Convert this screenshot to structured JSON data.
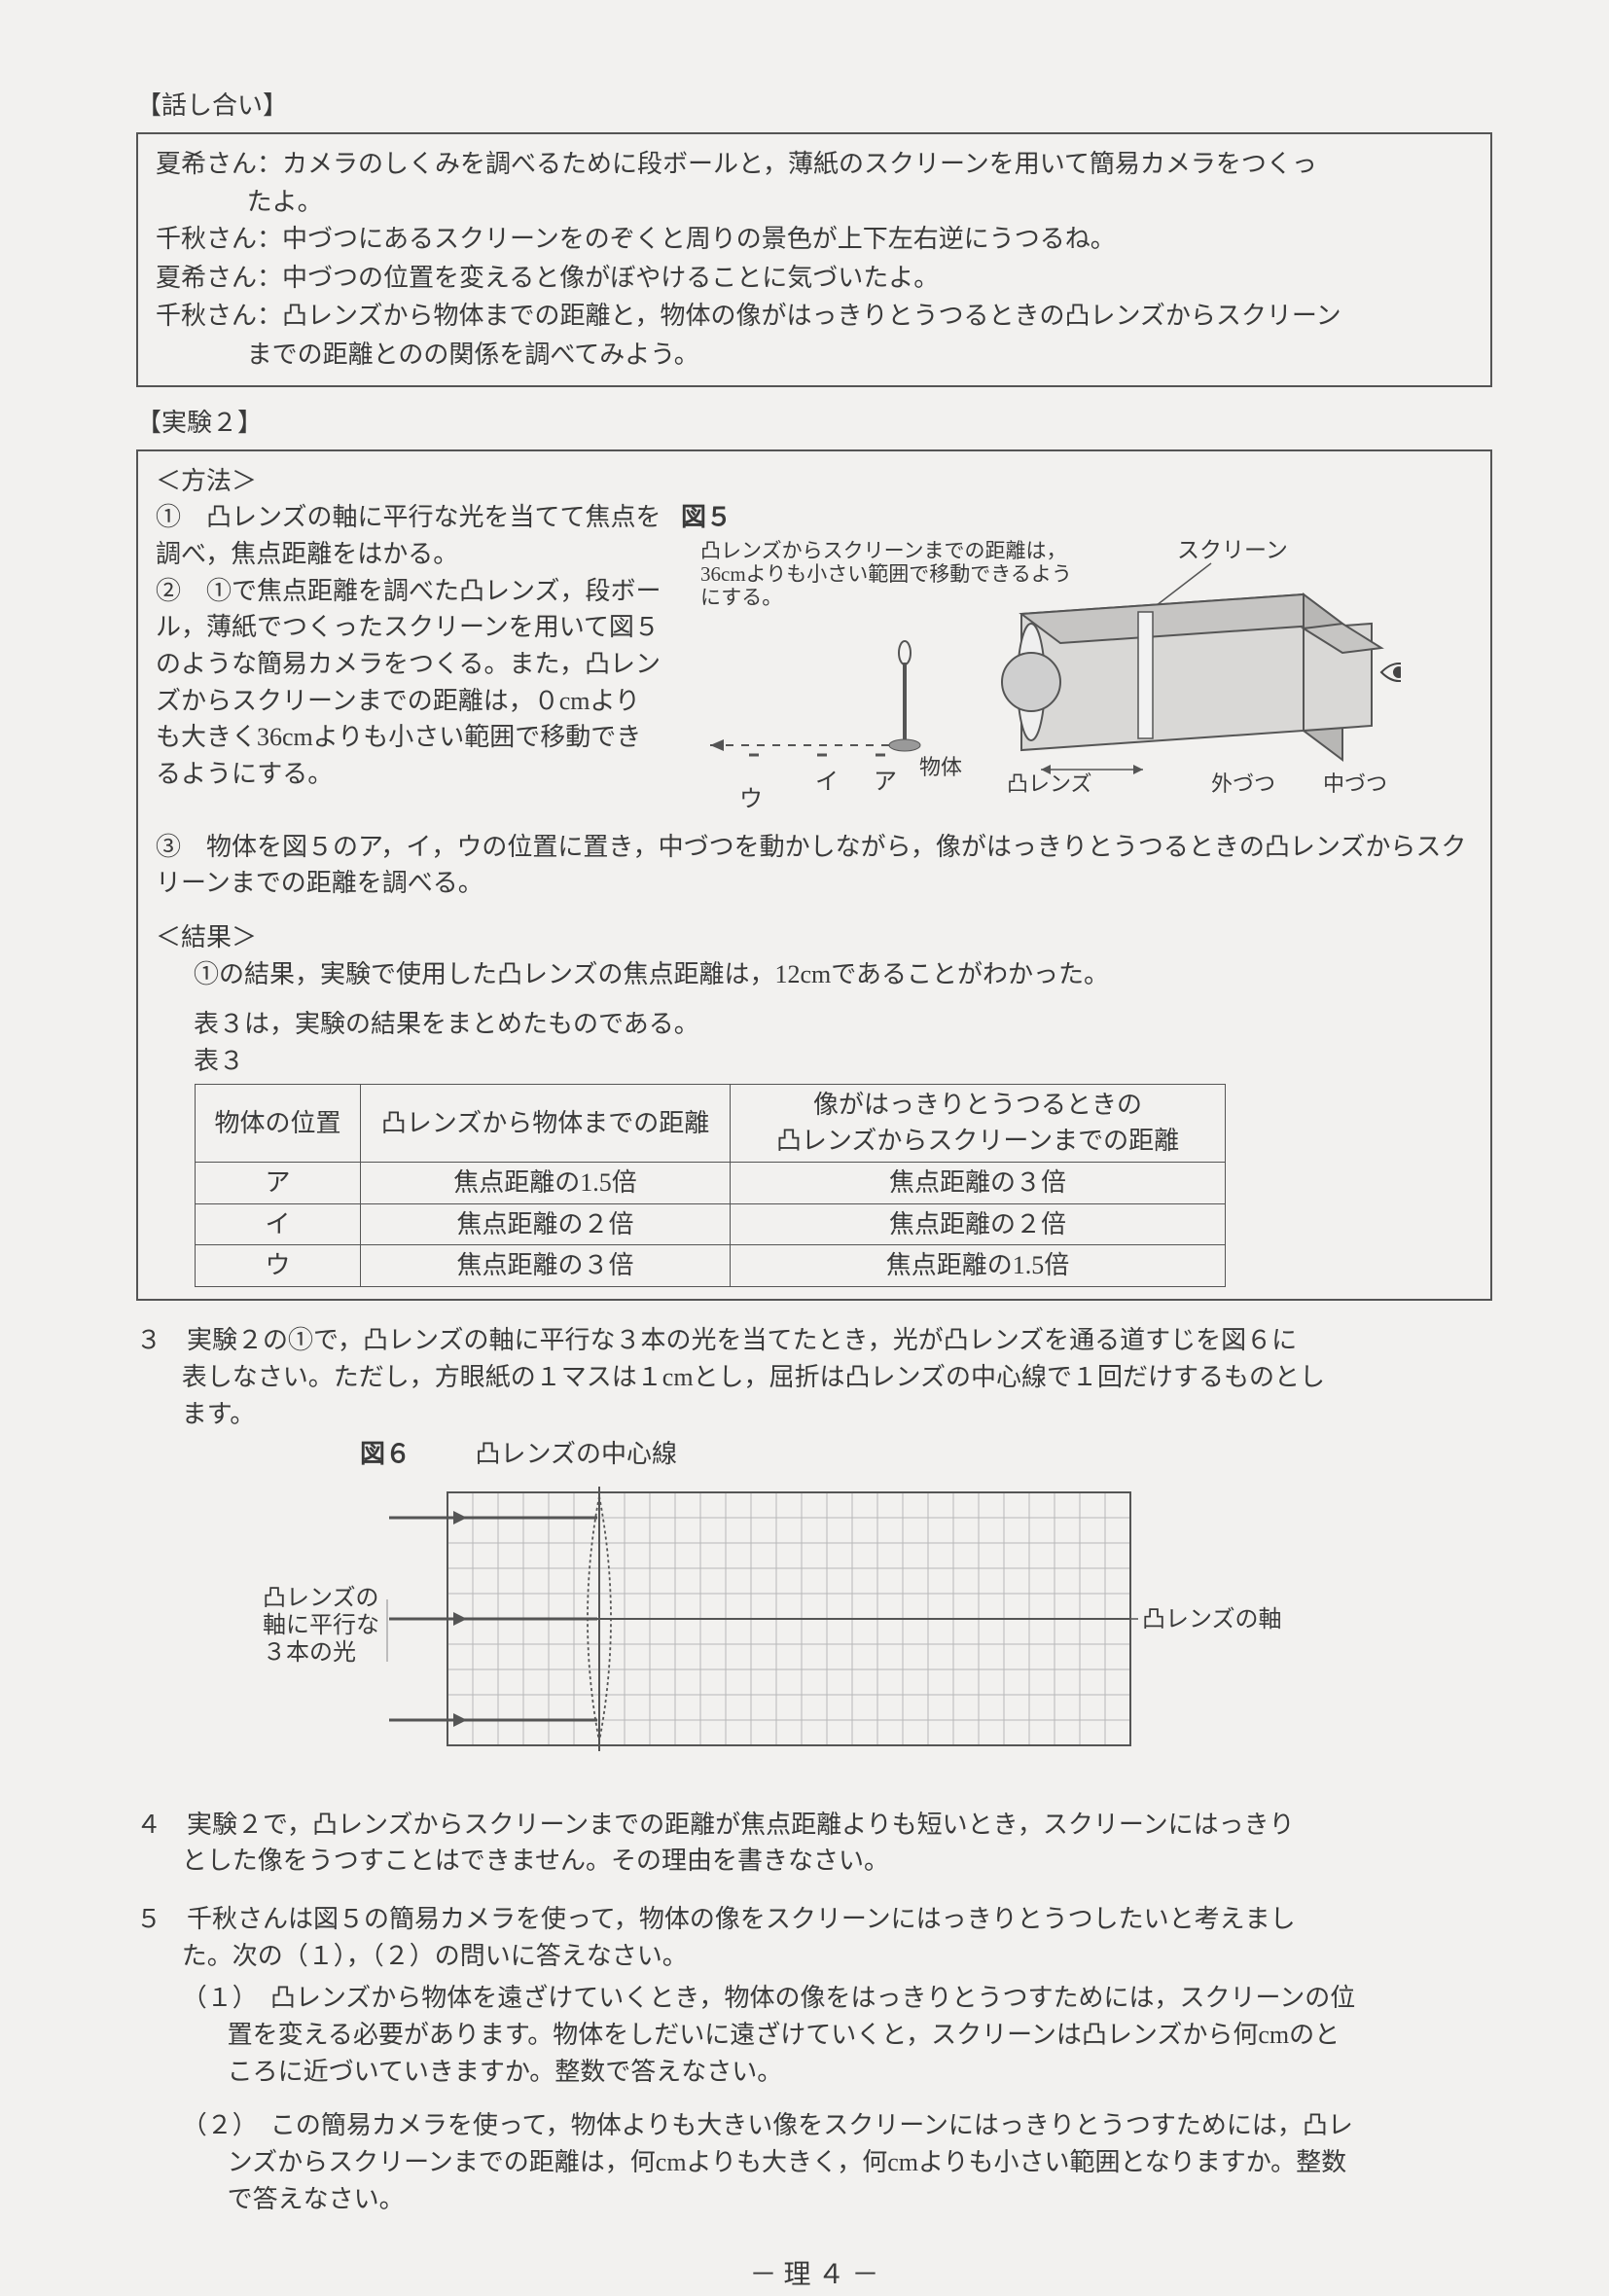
{
  "title_discussion": "【話し合い】",
  "dialog": [
    {
      "speaker": "夏希さん：",
      "text": "カメラのしくみを調べるために段ボールと，薄紙のスクリーンを用いて簡易カメラをつくっ",
      "cont": "たよ。"
    },
    {
      "speaker": "千秋さん：",
      "text": "中づつにあるスクリーンをのぞくと周りの景色が上下左右逆にうつるね。",
      "cont": null
    },
    {
      "speaker": "夏希さん：",
      "text": "中づつの位置を変えると像がぼやけることに気づいたよ。",
      "cont": null
    },
    {
      "speaker": "千秋さん：",
      "text": "凸レンズから物体までの距離と，物体の像がはっきりとうつるときの凸レンズからスクリーン",
      "cont": "までの距離とのの関係を調べてみよう。"
    }
  ],
  "title_exp2": "【実験２】",
  "method_heading": "＜方法＞",
  "method": {
    "m1": "①　凸レンズの軸に平行な光を当てて焦点を調べ，焦点距離をはかる。",
    "m2": "②　①で焦点距離を調べた凸レンズ，段ボール，薄紙でつくったスクリーンを用いて図５のような簡易カメラをつくる。また，凸レンズからスクリーンまでの距離は，０cmよりも大きく36cmよりも小さい範囲で移動できるようにする。",
    "m3": "③　物体を図５のア，イ，ウの位置に置き，中づつを動かしながら，像がはっきりとうつるときの凸レンズからスクリーンまでの距離を調べる。"
  },
  "fig5": {
    "label": "図５",
    "caption1": "凸レンズからスクリーンまでの距離は，",
    "caption2": "36cmよりも小さい範囲で移動できるよう",
    "caption3": "にする。",
    "screen": "スクリーン",
    "obj": "物体",
    "lens": "凸レンズ",
    "outer": "外づつ",
    "inner": "中づつ",
    "a": "ア",
    "i": "イ",
    "u": "ウ"
  },
  "result_heading": "＜結果＞",
  "result_line": "①の結果，実験で使用した凸レンズの焦点距離は，12cmであることがわかった。",
  "table_intro": "表３は，実験の結果をまとめたものである。",
  "table_label": "表３",
  "table": {
    "h1": "物体の位置",
    "h2": "凸レンズから物体までの距離",
    "h3a": "像がはっきりとうつるときの",
    "h3b": "凸レンズからスクリーンまでの距離",
    "r1": {
      "c1": "ア",
      "c2": "焦点距離の1.5倍",
      "c3": "焦点距離の３倍"
    },
    "r2": {
      "c1": "イ",
      "c2": "焦点距離の２倍",
      "c3": "焦点距離の２倍"
    },
    "r3": {
      "c1": "ウ",
      "c2": "焦点距離の３倍",
      "c3": "焦点距離の1.5倍"
    }
  },
  "q3": {
    "num": "３",
    "text1": "実験２の①で，凸レンズの軸に平行な３本の光を当てたとき，光が凸レンズを通る道すじを図６に",
    "text2": "表しなさい。ただし，方眼紙の１マスは１cmとし，屈折は凸レンズの中心線で１回だけするものとし",
    "text3": "ます。"
  },
  "fig6": {
    "label": "図６",
    "centerline": "凸レンズの中心線",
    "axis": "凸レンズの軸",
    "rays1": "凸レンズの",
    "rays2": "軸に平行な",
    "rays3": "３本の光",
    "grid": {
      "cols": 27,
      "rows": 10,
      "cell": 26,
      "lens_col": 6
    },
    "colors": {
      "grid": "#b8b8b8",
      "line": "#555",
      "light": "#888"
    }
  },
  "q4": {
    "num": "４",
    "text1": "実験２で，凸レンズからスクリーンまでの距離が焦点距離よりも短いとき，スクリーンにはっきり",
    "text2": "とした像をうつすことはできません。その理由を書きなさい。"
  },
  "q5": {
    "num": "５",
    "text1": "千秋さんは図５の簡易カメラを使って，物体の像をスクリーンにはっきりとうつしたいと考えまし",
    "text2": "た。次の（１），（２）の問いに答えなさい。",
    "s1": {
      "num": "（１）",
      "l1": "凸レンズから物体を遠ざけていくとき，物体の像をはっきりとうつすためには，スクリーンの位",
      "l2": "置を変える必要があります。物体をしだいに遠ざけていくと，スクリーンは凸レンズから何cmのと",
      "l3": "ころに近づいていきますか。整数で答えなさい。"
    },
    "s2": {
      "num": "（２）",
      "l1": "この簡易カメラを使って，物体よりも大きい像をスクリーンにはっきりとうつすためには，凸レ",
      "l2": "ンズからスクリーンまでの距離は，何cmよりも大きく，何cmよりも小さい範囲となりますか。整数",
      "l3": "で答えなさい。"
    }
  },
  "footer": "－ 理 ４ －"
}
